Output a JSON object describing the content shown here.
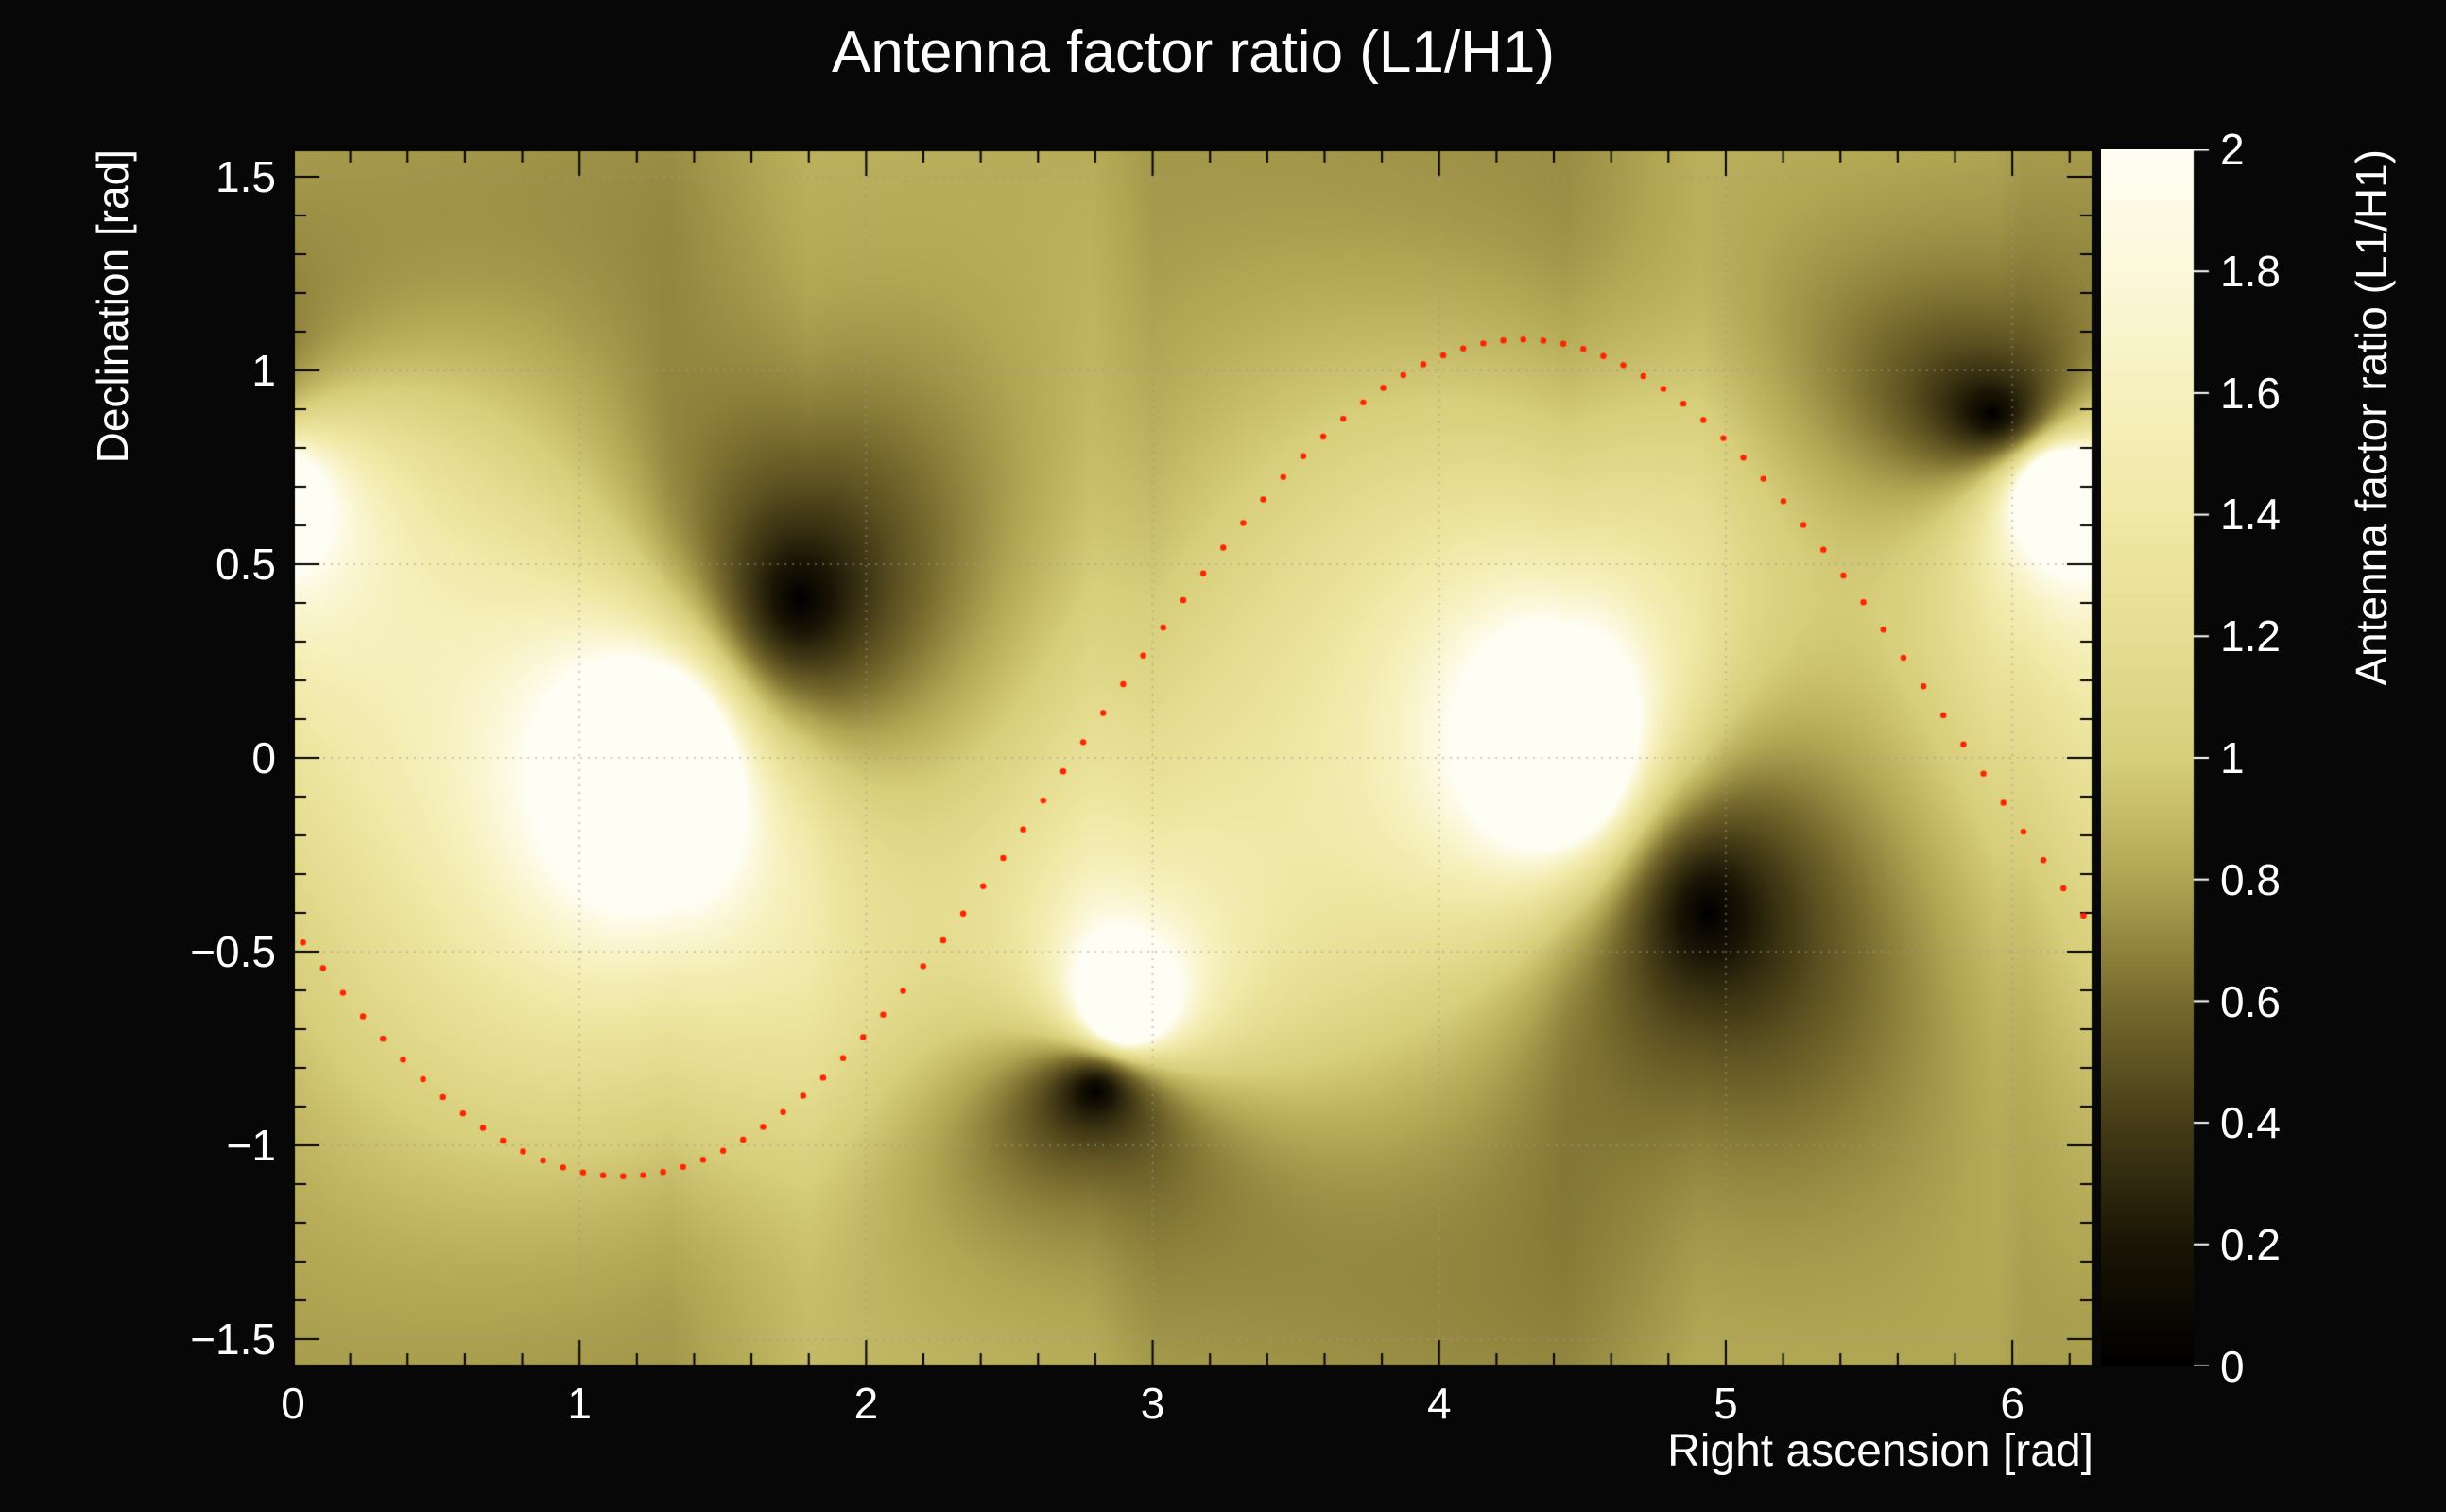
{
  "colors": {
    "background": "#070707",
    "text": "#ffffff",
    "frame": "#000000",
    "tick": "#000000",
    "grid": "#9a9a9a",
    "palette_tick": "#ffffff"
  },
  "chart_data": {
    "type": "heatmap",
    "title": "Antenna factor ratio (L1/H1)",
    "xlabel": "Right ascension [rad]",
    "ylabel": "Declination [rad]",
    "zlabel": "Antenna factor ratio (L1/H1)",
    "xlim": [
      0,
      6.2832
    ],
    "ylim": [
      -1.5708,
      1.5708
    ],
    "zlim": [
      0,
      2
    ],
    "x_ticks": {
      "values": [
        0,
        1,
        2,
        3,
        4,
        5,
        6
      ],
      "labels": [
        "0",
        "1",
        "2",
        "3",
        "4",
        "5",
        "6"
      ]
    },
    "x_minor_step": 0.2,
    "y_ticks": {
      "values": [
        -1.5,
        -1,
        -0.5,
        0,
        0.5,
        1,
        1.5
      ],
      "labels": [
        "−1.5",
        "−1",
        "−0.5",
        "0",
        "0.5",
        "1",
        "1.5"
      ]
    },
    "y_minor_step": 0.1,
    "z_ticks": {
      "values": [
        0,
        0.2,
        0.4,
        0.6,
        0.8,
        1,
        1.2,
        1.4,
        1.6,
        1.8,
        2
      ],
      "labels": [
        "0",
        "0.2",
        "0.4",
        "0.6",
        "0.8",
        "1",
        "1.2",
        "1.4",
        "1.6",
        "1.8",
        "2"
      ]
    },
    "grid": true,
    "colormap": {
      "name": "black-olive-cream",
      "stops": [
        [
          0.0,
          "#000000"
        ],
        [
          0.2,
          "#1a1505"
        ],
        [
          0.4,
          "#463d17"
        ],
        [
          0.6,
          "#786b2e"
        ],
        [
          0.8,
          "#b0a553"
        ],
        [
          1.0,
          "#d8cf7c"
        ],
        [
          1.2,
          "#e6de92"
        ],
        [
          1.4,
          "#f0e9a7"
        ],
        [
          1.6,
          "#f7f1bf"
        ],
        [
          1.8,
          "#fcf8da"
        ],
        [
          2.0,
          "#fffef4"
        ]
      ]
    },
    "field": {
      "model": "pair_ratio",
      "description": "value(ra,dec) = product over k of dist(ra,dec,dark_k)/dist(ra,dec,bright_k); RA-periodic spherical distance; clipped to zlim. dark_nulls = L1 antenna nulls (black spots), bright_peaks = H1 antenna nulls (white spots).",
      "dark_nulls": [
        [
          1.77,
          0.41
        ],
        [
          2.8,
          -0.86
        ],
        [
          4.94,
          -0.4
        ],
        [
          5.93,
          0.89
        ]
      ],
      "bright_peaks": [
        [
          1.3,
          0.0
        ],
        [
          2.9,
          -0.66
        ],
        [
          4.45,
          0.0
        ],
        [
          6.15,
          0.7
        ]
      ]
    },
    "overlay_curve": {
      "name": "source-track",
      "marker": "dot",
      "color": "#ff2400",
      "model": "dec = amplitude * sin(ra - phase)",
      "amplitude": 1.08,
      "phase": 2.72,
      "n_points": 90
    }
  }
}
